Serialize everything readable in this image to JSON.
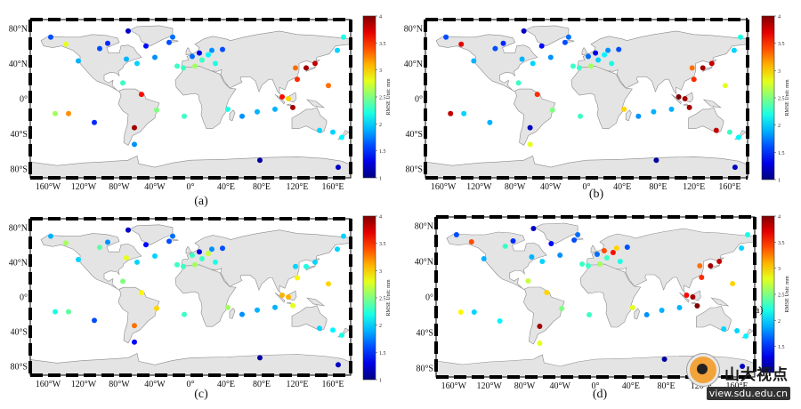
{
  "chart_data": [
    {
      "type": "scatter",
      "title": "",
      "panel_label": "(a)",
      "xlabel": "",
      "ylabel": "",
      "xlim": [
        -180,
        180
      ],
      "ylim": [
        -90,
        90
      ],
      "xticks": [
        "160°W",
        "120°W",
        "80°W",
        "40°W",
        "0°",
        "40°E",
        "80°E",
        "120°E",
        "160°E"
      ],
      "yticks": [
        "80°N",
        "40°N",
        "0°",
        "40°S",
        "80°S"
      ],
      "colorbar": {
        "label": "RMSE  Unit: mm",
        "min": 1,
        "max": 4,
        "ticks": [
          "1",
          "1.5",
          "2",
          "2.5",
          "3",
          "3.5",
          "4"
        ]
      },
      "points": [
        [
          -157,
          70,
          1.6
        ],
        [
          -140,
          62,
          2.8
        ],
        [
          -126,
          43,
          1.9
        ],
        [
          -102,
          57,
          1.6
        ],
        [
          -93,
          63,
          1.5
        ],
        [
          -70,
          77,
          1.2
        ],
        [
          -50,
          60,
          1.4
        ],
        [
          -20,
          70,
          1.7
        ],
        [
          -24,
          64,
          1.6
        ],
        [
          -40,
          47,
          1.8
        ],
        [
          -15,
          37,
          2.3
        ],
        [
          -8,
          35,
          2.3
        ],
        [
          -72,
          45,
          1.9
        ],
        [
          -60,
          40,
          2.0
        ],
        [
          -76,
          18,
          2.3
        ],
        [
          -55,
          5,
          3.6
        ],
        [
          -38,
          -13,
          2.5
        ],
        [
          -63,
          -33,
          3.9
        ],
        [
          -63,
          -52,
          1.8
        ],
        [
          -152,
          -17,
          2.6
        ],
        [
          -137,
          -17,
          3.2
        ],
        [
          -108,
          -27,
          1.5
        ],
        [
          -7,
          -20,
          2.3
        ],
        [
          42,
          -12,
          2.2
        ],
        [
          58,
          -20,
          1.8
        ],
        [
          2,
          48,
          1.7
        ],
        [
          10,
          52,
          1.3
        ],
        [
          20,
          50,
          2.1
        ],
        [
          24,
          55,
          1.8
        ],
        [
          36,
          56,
          1.6
        ],
        [
          13,
          44,
          2.3
        ],
        [
          28,
          40,
          2.2
        ],
        [
          5,
          37,
          2.6
        ],
        [
          120,
          22,
          3.5
        ],
        [
          130,
          35,
          3.9
        ],
        [
          140,
          40,
          3.8
        ],
        [
          118,
          35,
          3.3
        ],
        [
          110,
          0,
          3.0
        ],
        [
          115,
          -10,
          3.9
        ],
        [
          103,
          2,
          3.6
        ],
        [
          145,
          -36,
          2.0
        ],
        [
          160,
          -38,
          2.0
        ],
        [
          170,
          -44,
          2.1
        ],
        [
          155,
          15,
          3.3
        ],
        [
          165,
          55,
          2.0
        ],
        [
          172,
          70,
          2.2
        ],
        [
          78,
          -70,
          1.1
        ],
        [
          166,
          -78,
          1.2
        ],
        [
          95,
          -12,
          1.9
        ],
        [
          75,
          -15,
          1.9
        ]
      ]
    },
    {
      "type": "scatter",
      "title": "",
      "panel_label": "(b)",
      "xlabel": "",
      "ylabel": "",
      "xlim": [
        -180,
        180
      ],
      "ylim": [
        -90,
        90
      ],
      "xticks": [
        "160°W",
        "120°W",
        "80°W",
        "40°W",
        "0°",
        "40°E",
        "80°E",
        "120°E",
        "160°E"
      ],
      "yticks": [
        "80°N",
        "40°N",
        "0°",
        "40°S",
        "80°S"
      ],
      "colorbar": {
        "label": "RMSE  Unit: mm",
        "min": 1,
        "max": 4,
        "ticks": [
          "1",
          "1.5",
          "2",
          "2.5",
          "3",
          "3.5",
          "4"
        ]
      },
      "points": [
        [
          -157,
          70,
          1.6
        ],
        [
          -140,
          62,
          3.7
        ],
        [
          -126,
          43,
          1.9
        ],
        [
          -102,
          57,
          1.6
        ],
        [
          -93,
          63,
          1.5
        ],
        [
          -70,
          77,
          1.2
        ],
        [
          -50,
          60,
          1.4
        ],
        [
          -20,
          70,
          1.7
        ],
        [
          -24,
          64,
          1.6
        ],
        [
          -40,
          47,
          1.8
        ],
        [
          -15,
          37,
          2.3
        ],
        [
          -8,
          35,
          2.3
        ],
        [
          -72,
          45,
          1.9
        ],
        [
          -60,
          40,
          2.0
        ],
        [
          -76,
          18,
          2.3
        ],
        [
          -55,
          5,
          3.5
        ],
        [
          -38,
          -13,
          2.5
        ],
        [
          -63,
          -33,
          1.2
        ],
        [
          -63,
          -52,
          2.8
        ],
        [
          -152,
          -17,
          3.8
        ],
        [
          -137,
          -17,
          2.0
        ],
        [
          -108,
          -27,
          1.9
        ],
        [
          -7,
          -20,
          2.3
        ],
        [
          42,
          -12,
          3.0
        ],
        [
          58,
          -20,
          1.8
        ],
        [
          2,
          48,
          1.7
        ],
        [
          10,
          52,
          1.3
        ],
        [
          20,
          50,
          2.1
        ],
        [
          24,
          55,
          1.8
        ],
        [
          36,
          56,
          1.6
        ],
        [
          13,
          44,
          2.0
        ],
        [
          28,
          40,
          2.2
        ],
        [
          5,
          37,
          2.6
        ],
        [
          120,
          22,
          3.5
        ],
        [
          130,
          35,
          3.9
        ],
        [
          140,
          40,
          3.8
        ],
        [
          118,
          35,
          3.3
        ],
        [
          110,
          0,
          3.9
        ],
        [
          115,
          -10,
          3.9
        ],
        [
          103,
          2,
          4.0
        ],
        [
          145,
          -36,
          3.8
        ],
        [
          160,
          -38,
          2.3
        ],
        [
          170,
          -44,
          2.1
        ],
        [
          155,
          15,
          2.8
        ],
        [
          165,
          55,
          2.0
        ],
        [
          172,
          70,
          2.2
        ],
        [
          78,
          -70,
          1.1
        ],
        [
          166,
          -78,
          1.2
        ],
        [
          95,
          -12,
          1.9
        ],
        [
          75,
          -15,
          1.9
        ]
      ]
    },
    {
      "type": "scatter",
      "title": "",
      "panel_label": "(c)",
      "xlabel": "",
      "ylabel": "",
      "xlim": [
        -180,
        180
      ],
      "ylim": [
        -90,
        90
      ],
      "xticks": [
        "160°W",
        "120°W",
        "80°W",
        "40°W",
        "0°",
        "40°E",
        "80°E",
        "120°E",
        "160°E"
      ],
      "yticks": [
        "80°N",
        "40°N",
        "0°",
        "40°S",
        "80°S"
      ],
      "colorbar": {
        "label": "RMSE  Unit: mm",
        "min": 1,
        "max": 4,
        "ticks": [
          "1",
          "1.5",
          "2",
          "2.5",
          "3",
          "3.5",
          "4"
        ]
      },
      "points": [
        [
          -157,
          70,
          1.9
        ],
        [
          -140,
          62,
          2.6
        ],
        [
          -126,
          43,
          2.0
        ],
        [
          -102,
          57,
          2.4
        ],
        [
          -93,
          63,
          1.8
        ],
        [
          -70,
          77,
          1.2
        ],
        [
          -50,
          60,
          1.4
        ],
        [
          -20,
          70,
          1.7
        ],
        [
          -24,
          64,
          1.6
        ],
        [
          -40,
          47,
          2.0
        ],
        [
          -15,
          37,
          2.3
        ],
        [
          -8,
          35,
          2.3
        ],
        [
          -72,
          45,
          2.8
        ],
        [
          -60,
          40,
          2.0
        ],
        [
          -76,
          18,
          2.5
        ],
        [
          -55,
          5,
          2.9
        ],
        [
          -38,
          -13,
          3.0
        ],
        [
          -63,
          -33,
          3.3
        ],
        [
          -63,
          -52,
          1.4
        ],
        [
          -152,
          -17,
          2.2
        ],
        [
          -137,
          -17,
          2.4
        ],
        [
          -108,
          -27,
          1.6
        ],
        [
          -7,
          -20,
          2.3
        ],
        [
          42,
          -12,
          2.6
        ],
        [
          58,
          -20,
          1.8
        ],
        [
          2,
          48,
          2.3
        ],
        [
          10,
          52,
          1.3
        ],
        [
          20,
          50,
          2.7
        ],
        [
          24,
          55,
          1.8
        ],
        [
          36,
          56,
          1.6
        ],
        [
          13,
          44,
          2.3
        ],
        [
          28,
          40,
          2.2
        ],
        [
          5,
          37,
          2.6
        ],
        [
          120,
          22,
          2.9
        ],
        [
          130,
          35,
          2.2
        ],
        [
          140,
          40,
          2.0
        ],
        [
          118,
          35,
          2.0
        ],
        [
          110,
          0,
          3.1
        ],
        [
          115,
          -10,
          2.8
        ],
        [
          103,
          2,
          3.1
        ],
        [
          145,
          -36,
          2.0
        ],
        [
          160,
          -38,
          2.1
        ],
        [
          170,
          -44,
          2.2
        ],
        [
          155,
          15,
          3.0
        ],
        [
          165,
          55,
          2.0
        ],
        [
          172,
          70,
          2.0
        ],
        [
          78,
          -70,
          1.1
        ],
        [
          166,
          -78,
          1.2
        ],
        [
          95,
          -12,
          1.9
        ],
        [
          75,
          -15,
          1.9
        ]
      ]
    },
    {
      "type": "scatter",
      "title": "",
      "panel_label": "(d)",
      "xlabel": "",
      "ylabel": "",
      "xlim": [
        -180,
        180
      ],
      "ylim": [
        -90,
        90
      ],
      "xticks": [
        "160°W",
        "120°W",
        "80°W",
        "40°W",
        "0°",
        "40°E",
        "80°E",
        "120°E",
        "160°E"
      ],
      "yticks": [
        "80°N",
        "40°N",
        "0°",
        "40°S",
        "80°S"
      ],
      "colorbar": {
        "label": "RMSE  Unit: mm",
        "min": 1,
        "max": 4,
        "ticks": [
          "1",
          "1.5",
          "2",
          "2.5",
          "3",
          "3.5",
          "4"
        ]
      },
      "points": [
        [
          -157,
          70,
          1.6
        ],
        [
          -140,
          62,
          3.4
        ],
        [
          -126,
          43,
          1.9
        ],
        [
          -102,
          57,
          2.3
        ],
        [
          -93,
          63,
          1.5
        ],
        [
          -70,
          77,
          1.2
        ],
        [
          -50,
          60,
          1.4
        ],
        [
          -20,
          70,
          1.7
        ],
        [
          -24,
          64,
          1.6
        ],
        [
          -40,
          47,
          1.8
        ],
        [
          -15,
          37,
          2.3
        ],
        [
          -8,
          35,
          2.3
        ],
        [
          -72,
          45,
          1.9
        ],
        [
          -60,
          40,
          2.0
        ],
        [
          -76,
          18,
          2.7
        ],
        [
          -55,
          5,
          3.0
        ],
        [
          -38,
          -13,
          2.5
        ],
        [
          -63,
          -33,
          3.9
        ],
        [
          -63,
          -52,
          2.8
        ],
        [
          -152,
          -17,
          2.9
        ],
        [
          -137,
          -17,
          2.0
        ],
        [
          -108,
          -27,
          2.1
        ],
        [
          -7,
          -20,
          2.3
        ],
        [
          42,
          -12,
          2.8
        ],
        [
          58,
          -20,
          1.8
        ],
        [
          2,
          48,
          1.7
        ],
        [
          10,
          52,
          3.4
        ],
        [
          20,
          50,
          3.6
        ],
        [
          24,
          55,
          3.0
        ],
        [
          36,
          56,
          1.6
        ],
        [
          13,
          44,
          2.3
        ],
        [
          28,
          40,
          2.2
        ],
        [
          5,
          37,
          2.6
        ],
        [
          120,
          22,
          3.5
        ],
        [
          130,
          35,
          3.9
        ],
        [
          140,
          40,
          3.8
        ],
        [
          118,
          35,
          3.3
        ],
        [
          110,
          0,
          3.9
        ],
        [
          115,
          -10,
          4.0
        ],
        [
          103,
          2,
          3.6
        ],
        [
          145,
          -36,
          2.0
        ],
        [
          160,
          -38,
          2.0
        ],
        [
          170,
          -44,
          2.1
        ],
        [
          155,
          15,
          3.0
        ],
        [
          165,
          55,
          2.0
        ],
        [
          172,
          70,
          2.2
        ],
        [
          78,
          -70,
          1.1
        ],
        [
          166,
          -78,
          1.2
        ],
        [
          95,
          -12,
          1.9
        ],
        [
          75,
          -15,
          1.9
        ]
      ]
    }
  ],
  "stray_label": "a)",
  "watermark": {
    "text": "山大视点",
    "url": "view.sdu.edu.cn"
  },
  "colors": {
    "land": "#e4e4e4",
    "coast": "#8a8a8a",
    "frame": "#000000",
    "background": "#ffffff"
  }
}
